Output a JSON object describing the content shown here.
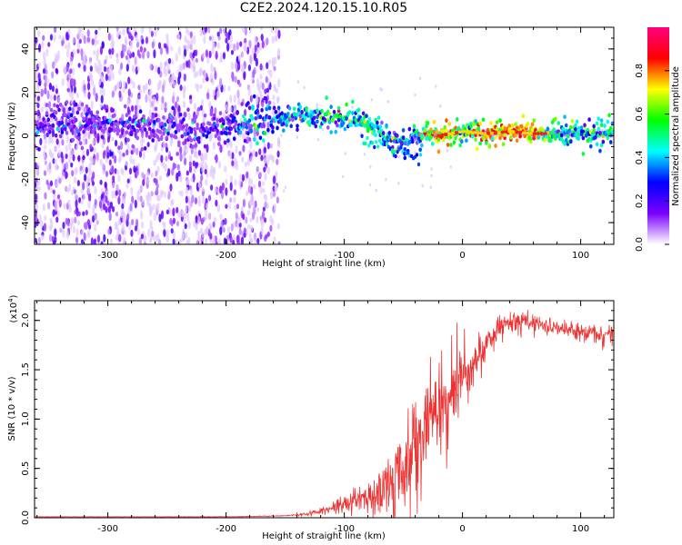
{
  "title": "C2E2.2024.120.15.10.R05",
  "colors": {
    "snr_line": "#ee3333",
    "background": "#ffffff"
  },
  "chart_data": [
    {
      "type": "heatmap",
      "title": "C2E2.2024.120.15.10.R05",
      "xlabel": "Height of straight line (km)",
      "ylabel": "Frequency (Hz)",
      "xlim": [
        -362,
        128
      ],
      "ylim": [
        -50,
        50
      ],
      "x_ticks": [
        -300,
        -200,
        -100,
        0,
        100
      ],
      "x_tick_labels": [
        "-300",
        "-200",
        "-100",
        "0",
        "100"
      ],
      "y_ticks": [
        -40,
        -20,
        0,
        20,
        40
      ],
      "y_tick_labels": [
        "-40",
        "-20",
        "0",
        "20",
        "40"
      ],
      "colorbar": {
        "label": "Normalized spectral amplitude",
        "range": [
          0,
          1
        ],
        "ticks": [
          0.0,
          0.2,
          0.4,
          0.6,
          0.8
        ],
        "tick_labels": [
          "0.0",
          "0.2",
          "0.4",
          "0.6",
          "0.8"
        ],
        "colormap": [
          "#ffffff",
          "#7a00ff",
          "#0000ff",
          "#00ffff",
          "#00ff00",
          "#ffff00",
          "#ff0000",
          "#ff0080"
        ]
      },
      "ridge": {
        "x": [
          -360,
          -340,
          -320,
          -300,
          -280,
          -260,
          -240,
          -220,
          -200,
          -190,
          -180,
          -160,
          -140,
          -120,
          -100,
          -90,
          -80,
          -70,
          -60,
          -50,
          -40,
          -30,
          -20,
          -10,
          0,
          20,
          40,
          60,
          80,
          100,
          128
        ],
        "frequency": [
          6,
          7,
          6,
          5,
          4,
          4,
          4,
          3,
          3,
          5,
          7,
          8,
          9,
          9,
          8,
          7,
          5,
          2,
          -2,
          -3,
          -1,
          1,
          0,
          1,
          2,
          1,
          2,
          1,
          1,
          1,
          1
        ],
        "amplitude": [
          0.18,
          0.2,
          0.2,
          0.2,
          0.2,
          0.2,
          0.2,
          0.2,
          0.22,
          0.35,
          0.45,
          0.4,
          0.45,
          0.5,
          0.5,
          0.5,
          0.55,
          0.5,
          0.45,
          0.4,
          0.45,
          0.6,
          0.85,
          0.8,
          0.55,
          0.85,
          0.85,
          0.8,
          0.55,
          0.5,
          0.5
        ]
      },
      "noise_extent_x": [
        -362,
        -155
      ]
    },
    {
      "type": "line",
      "xlabel": "Height of straight line (km)",
      "ylabel": "SNR (10 * v/v)",
      "y_scale_label": "(x10",
      "y_scale_exponent": "4",
      "y_scale_suffix": ")",
      "xlim": [
        -362,
        128
      ],
      "ylim": [
        0,
        2.2
      ],
      "x_ticks": [
        -300,
        -200,
        -100,
        0,
        100
      ],
      "x_tick_labels": [
        "-300",
        "-200",
        "-100",
        "0",
        "100"
      ],
      "y_ticks": [
        0.0,
        0.5,
        1.0,
        1.5,
        2.0
      ],
      "y_tick_labels": [
        "0.0",
        "0.5",
        "1.0",
        "1.5",
        "2.0"
      ],
      "series": [
        {
          "x": [
            -362,
            -300,
            -250,
            -200,
            -150,
            -130,
            -120,
            -110,
            -100,
            -90,
            -80,
            -70,
            -60,
            -50,
            -40,
            -30,
            -20,
            -10,
            0,
            10,
            20,
            30,
            40,
            50,
            60,
            70,
            80,
            90,
            100,
            110,
            120,
            128
          ],
          "values": [
            0.01,
            0.01,
            0.01,
            0.01,
            0.02,
            0.04,
            0.07,
            0.1,
            0.14,
            0.18,
            0.22,
            0.28,
            0.36,
            0.5,
            0.7,
            0.95,
            1.1,
            1.25,
            1.4,
            1.55,
            1.72,
            1.9,
            2.0,
            2.0,
            1.98,
            1.95,
            1.93,
            1.9,
            1.88,
            1.87,
            1.86,
            1.85
          ],
          "noise": [
            0.002,
            0.002,
            0.002,
            0.003,
            0.005,
            0.02,
            0.04,
            0.06,
            0.1,
            0.14,
            0.18,
            0.25,
            0.35,
            0.45,
            0.55,
            0.6,
            0.55,
            0.45,
            0.35,
            0.25,
            0.2,
            0.15,
            0.12,
            0.1,
            0.09,
            0.08,
            0.08,
            0.08,
            0.08,
            0.1,
            0.12,
            0.12
          ]
        }
      ]
    }
  ]
}
